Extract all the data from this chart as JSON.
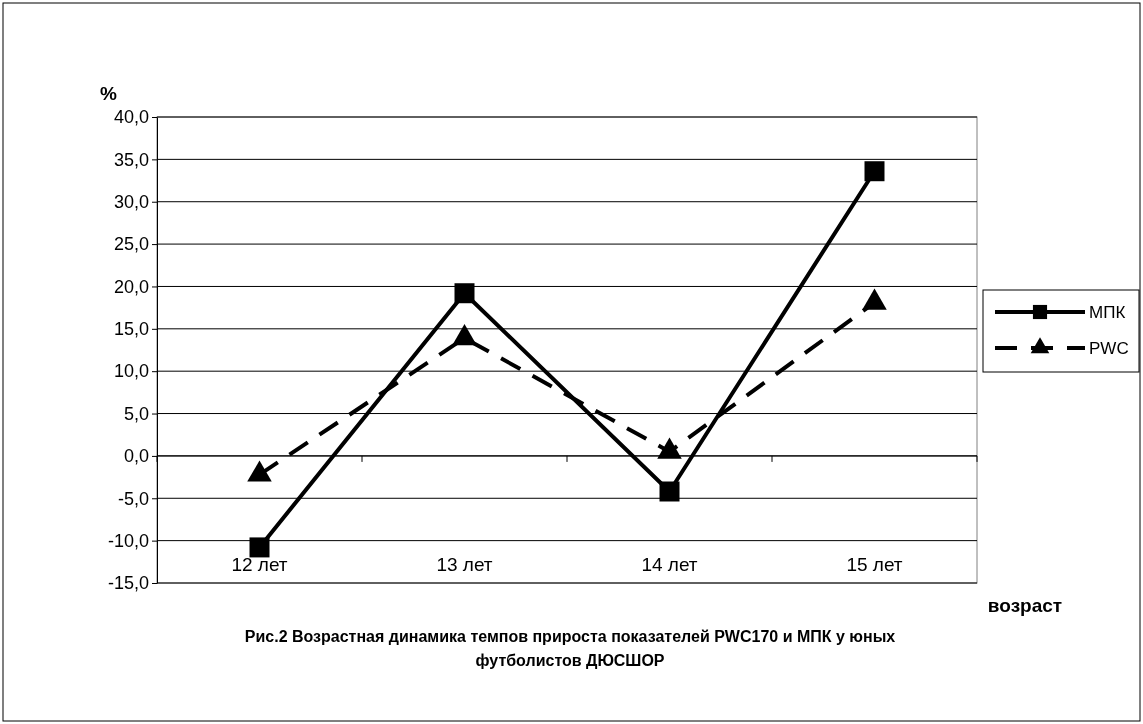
{
  "chart_data": {
    "type": "line",
    "title": "Рис.2  Возрастная динамика темпов прироста показателей PWC170 и МПК у юных футболистов ДЮСШОР",
    "ylabel": "%",
    "xlabel": "возраст",
    "categories": [
      "12 лет",
      "13 лет",
      "14 лет",
      "15 лет"
    ],
    "series": [
      {
        "name": "МПК",
        "color": "#000000",
        "values": [
          -10.8,
          19.2,
          -4.2,
          33.6
        ],
        "marker": "square",
        "line_style": "solid"
      },
      {
        "name": "PWC",
        "color": "#000000",
        "values": [
          -2.2,
          13.9,
          0.5,
          18.1
        ],
        "marker": "triangle",
        "line_style": "dashed"
      }
    ],
    "ylim": [
      -15,
      40
    ],
    "yticks": [
      {
        "value": -15,
        "label": "-15,0"
      },
      {
        "value": -10,
        "label": "-10,0"
      },
      {
        "value": -5,
        "label": "-5,0"
      },
      {
        "value": 0,
        "label": "0,0"
      },
      {
        "value": 5,
        "label": "5,0"
      },
      {
        "value": 10,
        "label": "10,0"
      },
      {
        "value": 15,
        "label": "15,0"
      },
      {
        "value": 20,
        "label": "20,0"
      },
      {
        "value": 25,
        "label": "25,0"
      },
      {
        "value": 30,
        "label": "30,0"
      },
      {
        "value": 35,
        "label": "35,0"
      },
      {
        "value": 40,
        "label": "40,0"
      }
    ],
    "grid": "y",
    "legend": "right"
  }
}
